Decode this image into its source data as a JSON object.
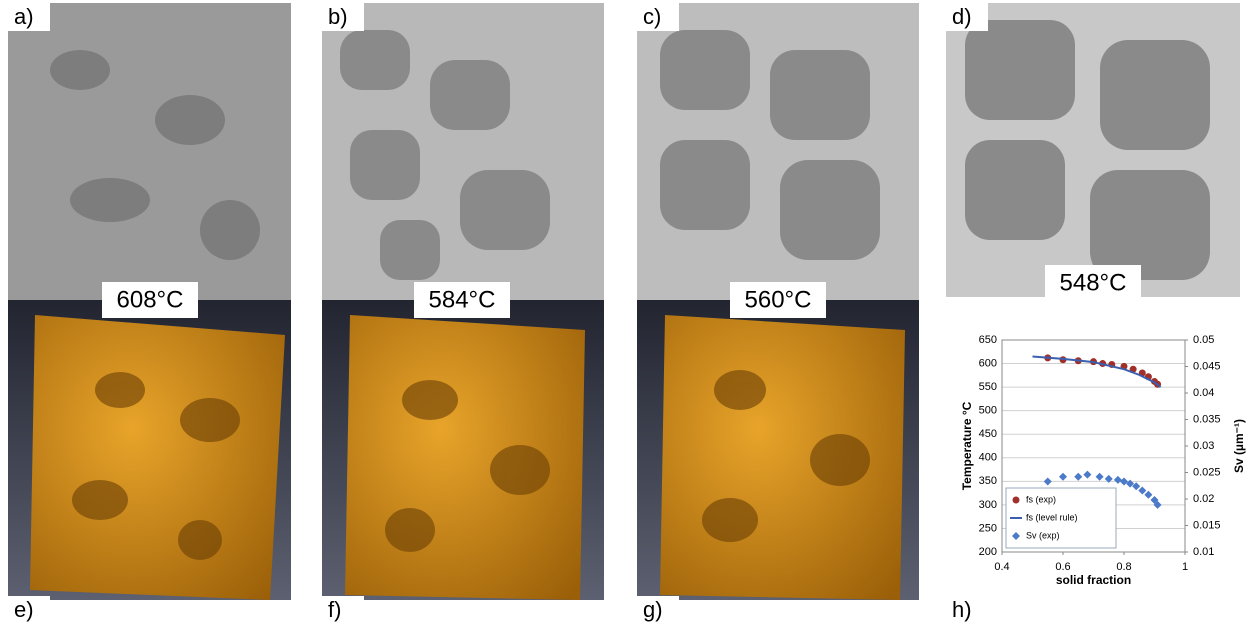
{
  "panels": [
    "a)",
    "b)",
    "c)",
    "d)",
    "e)",
    "f)",
    "g)",
    "h)"
  ],
  "temperatures": [
    "608°C",
    "584°C",
    "560°C",
    "548°C"
  ],
  "chart_data": {
    "type": "scatter",
    "xlabel": "solid fraction",
    "ylabel": "Temperature °C",
    "y2label": "Sv (µm⁻¹)",
    "xlim": [
      0.4,
      1
    ],
    "xticks": [
      0.4,
      0.6,
      0.8,
      1
    ],
    "ylim": [
      200,
      650
    ],
    "yticks": [
      200,
      250,
      300,
      350,
      400,
      450,
      500,
      550,
      600,
      650
    ],
    "y2lim": [
      0.01,
      0.05
    ],
    "y2ticks": [
      0.01,
      0.015,
      0.02,
      0.025,
      0.03,
      0.035,
      0.04,
      0.045,
      0.05
    ],
    "grid": true,
    "series": [
      {
        "name": "fs (exp)",
        "type": "scatter",
        "color": "#a0302a",
        "x": [
          0.55,
          0.6,
          0.65,
          0.7,
          0.73,
          0.76,
          0.8,
          0.83,
          0.86,
          0.88,
          0.9,
          0.91
        ],
        "values": [
          612,
          608,
          606,
          604,
          600,
          598,
          594,
          588,
          580,
          572,
          562,
          556
        ]
      },
      {
        "name": "fs (level rule)",
        "type": "line",
        "color": "#3a5fb0",
        "x": [
          0.5,
          0.6,
          0.7,
          0.8,
          0.85,
          0.9,
          0.92
        ],
        "values": [
          615,
          610,
          603,
          588,
          576,
          560,
          550
        ]
      },
      {
        "name": "Sv (exp)",
        "type": "scatter",
        "color": "#4a7ac8",
        "axis": "y2",
        "x": [
          0.55,
          0.6,
          0.65,
          0.68,
          0.72,
          0.75,
          0.78,
          0.8,
          0.82,
          0.84,
          0.86,
          0.88,
          0.9,
          0.91
        ],
        "values": [
          0.0233,
          0.0242,
          0.0242,
          0.0246,
          0.0242,
          0.0238,
          0.0236,
          0.0233,
          0.0229,
          0.0224,
          0.0216,
          0.0208,
          0.0198,
          0.0189
        ]
      }
    ]
  }
}
